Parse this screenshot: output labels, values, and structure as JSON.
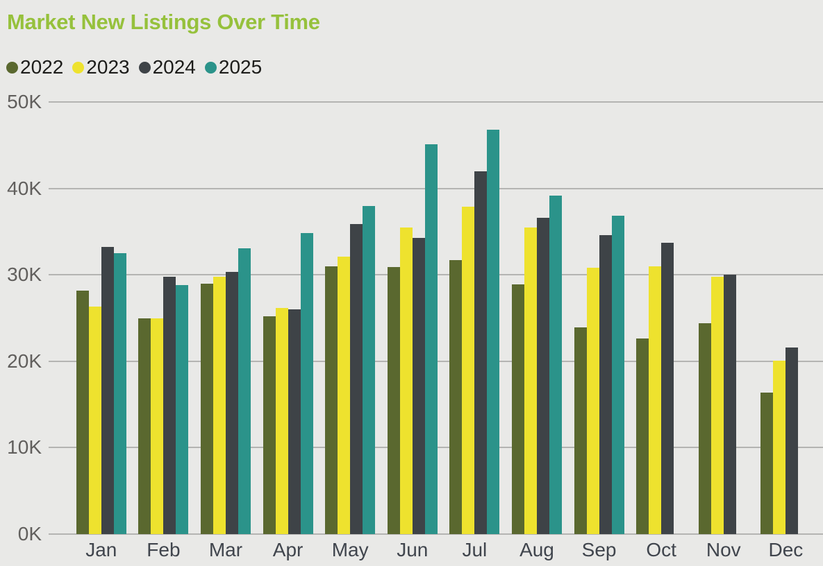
{
  "chart_data": {
    "type": "bar",
    "title": "Market New Listings Over Time",
    "title_color": "#96c13c",
    "unit": "K",
    "categories": [
      "Jan",
      "Feb",
      "Mar",
      "Apr",
      "May",
      "Jun",
      "Jul",
      "Aug",
      "Sep",
      "Oct",
      "Nov",
      "Dec"
    ],
    "series": [
      {
        "name": "2022",
        "color": "#5a682f",
        "values": [
          28.2,
          25.0,
          29.0,
          25.2,
          31.0,
          30.9,
          31.7,
          28.9,
          23.9,
          22.6,
          24.4,
          16.4
        ]
      },
      {
        "name": "2023",
        "color": "#eee22e",
        "values": [
          26.3,
          25.0,
          29.8,
          26.2,
          32.1,
          35.5,
          37.9,
          35.5,
          30.8,
          31.0,
          29.8,
          20.1
        ]
      },
      {
        "name": "2024",
        "color": "#3e4347",
        "values": [
          33.2,
          29.8,
          30.3,
          26.0,
          35.9,
          34.3,
          42.0,
          36.6,
          34.6,
          33.7,
          30.0,
          21.6
        ]
      },
      {
        "name": "2025",
        "color": "#2b938a",
        "values": [
          32.5,
          28.8,
          33.1,
          34.8,
          38.0,
          45.1,
          46.8,
          39.2,
          36.8,
          null,
          null,
          null
        ]
      }
    ],
    "ylim": [
      0,
      50
    ],
    "yticks": [
      {
        "label": "50K",
        "value": 50
      },
      {
        "label": "40K",
        "value": 40
      },
      {
        "label": "30K",
        "value": 30
      },
      {
        "label": "20K",
        "value": 20
      },
      {
        "label": "10K",
        "value": 10
      },
      {
        "label": "0K",
        "value": 0
      }
    ],
    "legend_position": "top-left",
    "grid": "horizontal",
    "values_in_thousands": true
  }
}
